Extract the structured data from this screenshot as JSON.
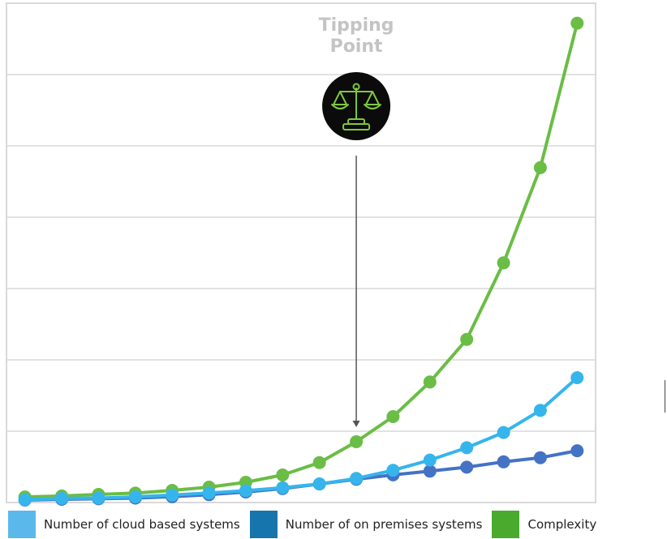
{
  "chart_data": {
    "type": "line",
    "x": [
      1,
      2,
      3,
      4,
      5,
      6,
      7,
      8,
      9,
      10,
      11,
      12,
      13,
      14,
      15,
      16
    ],
    "series": [
      {
        "name": "Number of cloud based systems",
        "color": "#35b5ec",
        "swatch_color": "#5bb8ea",
        "values": [
          2,
          2.9,
          3.1,
          4.0,
          5.2,
          6.7,
          8.3,
          10.4,
          13.0,
          16.9,
          22.6,
          29.8,
          38.4,
          49.1,
          64.6,
          87.5
        ]
      },
      {
        "name": "Number of on premises systems",
        "color": "#4472c4",
        "swatch_color": "#1775ad",
        "values": [
          1.7,
          2.3,
          2.6,
          3.1,
          4.1,
          5.5,
          7.4,
          9.8,
          13.0,
          16.3,
          19.4,
          22.0,
          24.8,
          28.5,
          31.4,
          36.3
        ]
      },
      {
        "name": "Complexity",
        "color": "#6abd45",
        "swatch_color": "#4aaa2e",
        "values": [
          3.9,
          4.6,
          5.7,
          6.6,
          8.5,
          10.8,
          14.2,
          19.3,
          28.0,
          42.6,
          60.2,
          84.5,
          114.4,
          168.0,
          234.7,
          336.0
        ]
      }
    ],
    "ylim": [
      0,
      350
    ],
    "xlim": [
      0.5,
      16.5
    ],
    "grid": true,
    "annotation": {
      "text_line1": "Tipping",
      "text_line2": "Point",
      "icon": "scale-icon",
      "at_x": 10
    },
    "legend_position": "bottom"
  }
}
